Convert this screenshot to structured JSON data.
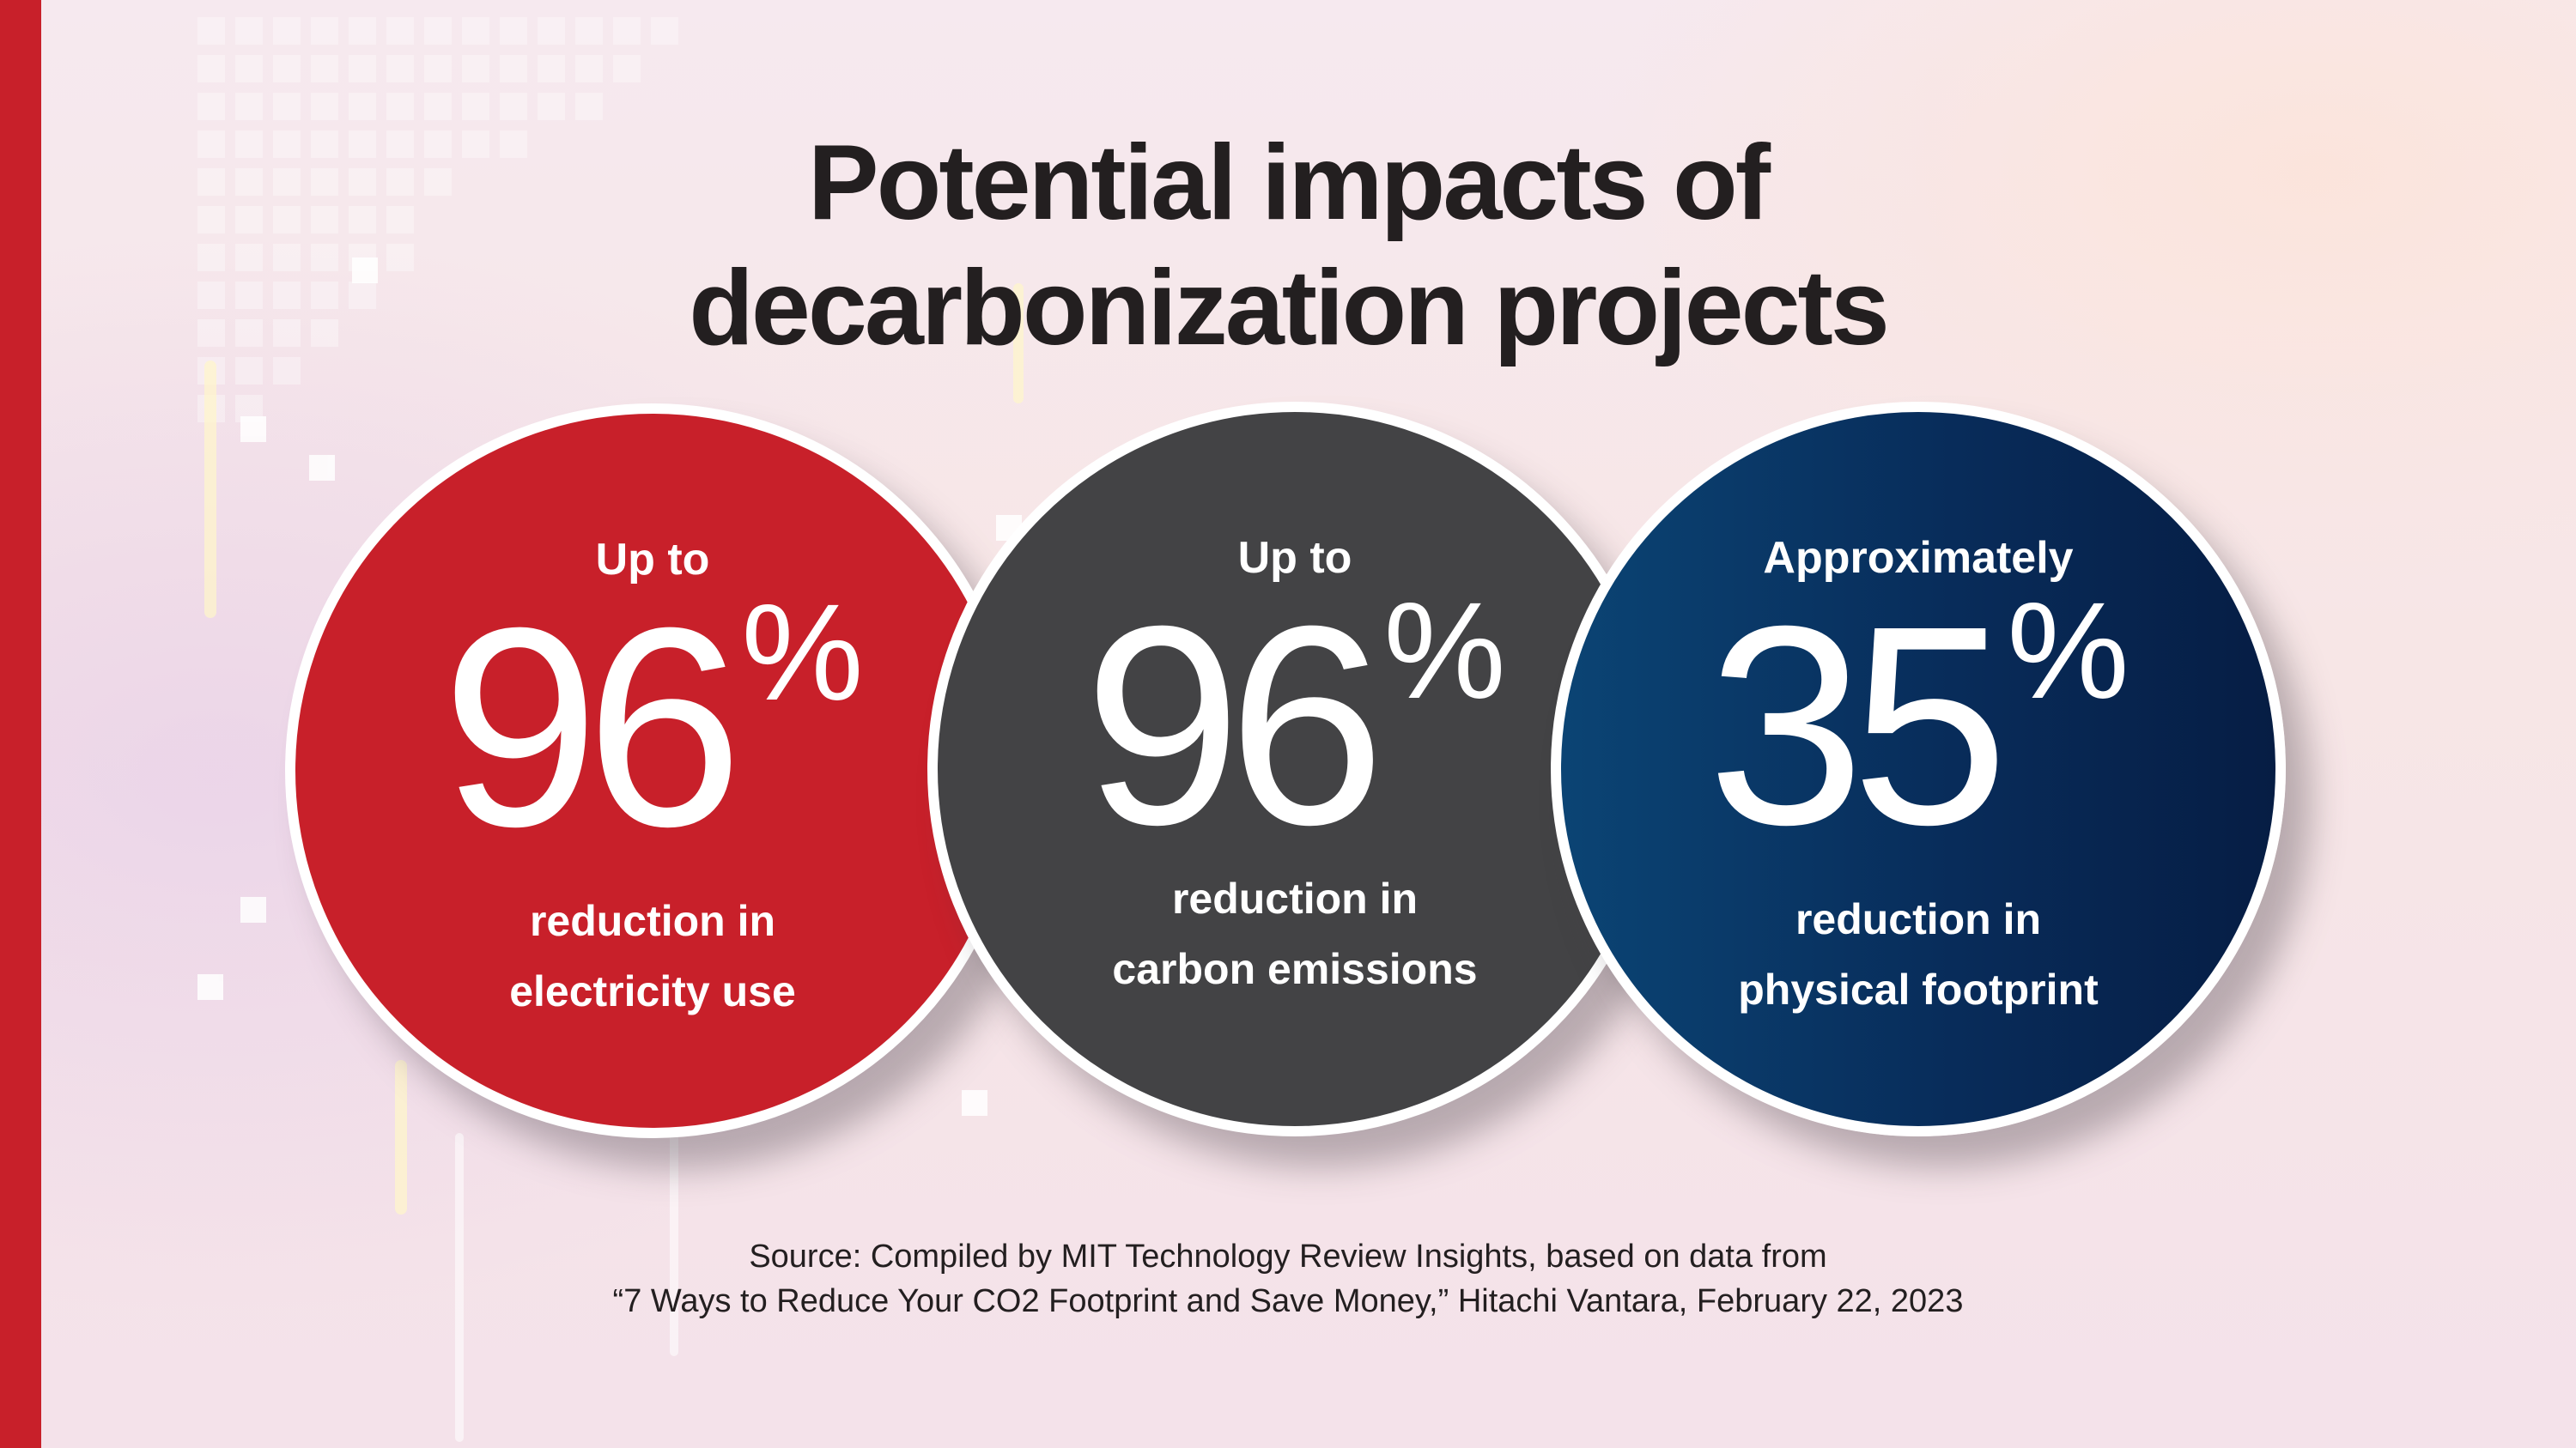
{
  "title": {
    "line1": "Potential impacts of",
    "line2": "decarbonization projects"
  },
  "stats": [
    {
      "qualifier": "Up to",
      "value": "96",
      "unit": "%",
      "desc_line1": "reduction in",
      "desc_line2": "electricity use",
      "color": "#c8202a"
    },
    {
      "qualifier": "Up to",
      "value": "96",
      "unit": "%",
      "desc_line1": "reduction in",
      "desc_line2": "carbon emissions",
      "color": "#434345"
    },
    {
      "qualifier": "Approximately",
      "value": "35",
      "unit": "%",
      "desc_line1": "reduction in",
      "desc_line2": "physical footprint",
      "color": "#0a2f5e"
    }
  ],
  "source": {
    "line1": "Source: Compiled by MIT Technology Review Insights, based on data from",
    "line2": "“7 Ways to Reduce Your CO2 Footprint and Save Money,” Hitachi Vantara, February 22, 2023"
  },
  "colors": {
    "accent": "#c8202a",
    "text": "#231f20"
  }
}
